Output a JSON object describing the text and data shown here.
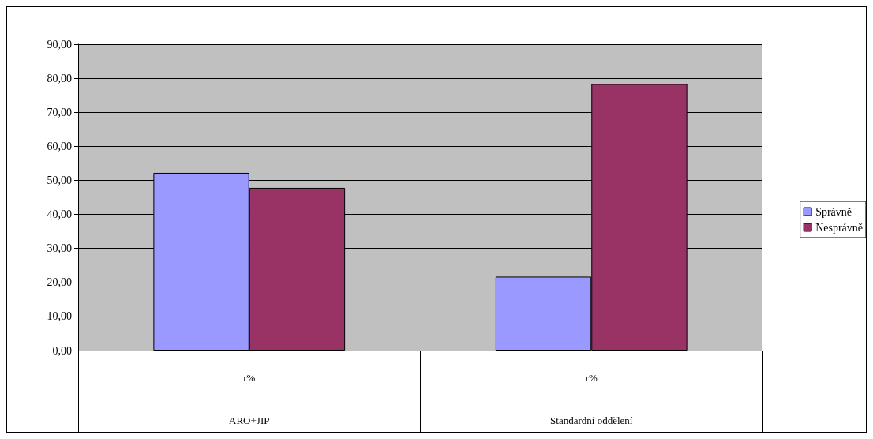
{
  "chart_data": {
    "type": "bar",
    "categories": [
      "r%",
      "r%"
    ],
    "series": [
      {
        "name": "Správně",
        "color": "#9999ff",
        "values": [
          52.2,
          21.7
        ]
      },
      {
        "name": "Nesprávně",
        "color": "#993366",
        "values": [
          47.8,
          78.3
        ]
      }
    ],
    "annotations": [
      "ARO+JIP",
      "Standardní oddělení"
    ],
    "ylim": [
      0,
      90
    ],
    "yticks": [
      {
        "value": 0,
        "label": "0,00"
      },
      {
        "value": 10,
        "label": "10,00"
      },
      {
        "value": 20,
        "label": "20,00"
      },
      {
        "value": 30,
        "label": "30,00"
      },
      {
        "value": 40,
        "label": "40,00"
      },
      {
        "value": 50,
        "label": "50,00"
      },
      {
        "value": 60,
        "label": "60,00"
      },
      {
        "value": 70,
        "label": "70,00"
      },
      {
        "value": 80,
        "label": "80,00"
      },
      {
        "value": 90,
        "label": "90,00"
      }
    ],
    "grid": "y",
    "legend": "right"
  }
}
